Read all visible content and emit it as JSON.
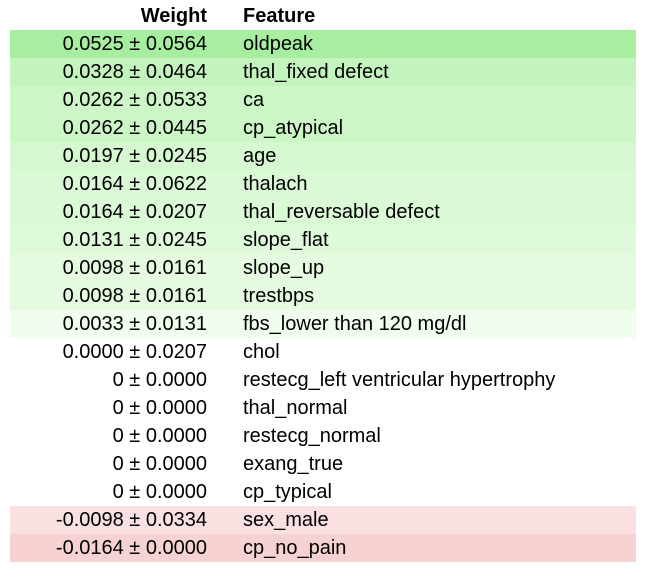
{
  "table": {
    "headers": {
      "weight": "Weight",
      "feature": "Feature"
    },
    "rows": [
      {
        "weight": "0.0525 ± 0.0564",
        "feature": "oldpeak",
        "bg": "#a8eea0"
      },
      {
        "weight": "0.0328 ± 0.0464",
        "feature": "thal_fixed defect",
        "bg": "#c4f4bd"
      },
      {
        "weight": "0.0262 ± 0.0533",
        "feature": "ca",
        "bg": "#ccf6c6"
      },
      {
        "weight": "0.0262 ± 0.0445",
        "feature": "cp_atypical",
        "bg": "#ccf6c6"
      },
      {
        "weight": "0.0197 ± 0.0245",
        "feature": "age",
        "bg": "#d5f8d0"
      },
      {
        "weight": "0.0164 ± 0.0622",
        "feature": "thalach",
        "bg": "#daf9d5"
      },
      {
        "weight": "0.0164 ± 0.0207",
        "feature": "thal_reversable defect",
        "bg": "#daf9d5"
      },
      {
        "weight": "0.0131 ± 0.0245",
        "feature": "slope_flat",
        "bg": "#dffadb"
      },
      {
        "weight": "0.0098 ± 0.0161",
        "feature": "slope_up",
        "bg": "#e4fbe0"
      },
      {
        "weight": "0.0098 ± 0.0161",
        "feature": "trestbps",
        "bg": "#e4fbe0"
      },
      {
        "weight": "0.0033 ± 0.0131",
        "feature": "fbs_lower than 120 mg/dl",
        "bg": "#f1fdef"
      },
      {
        "weight": "0.0000 ± 0.0207",
        "feature": "chol",
        "bg": "#ffffff"
      },
      {
        "weight": "0 ± 0.0000",
        "feature": "restecg_left ventricular hypertrophy",
        "bg": "#ffffff"
      },
      {
        "weight": "0 ± 0.0000",
        "feature": "thal_normal",
        "bg": "#ffffff"
      },
      {
        "weight": "0 ± 0.0000",
        "feature": "restecg_normal",
        "bg": "#ffffff"
      },
      {
        "weight": "0 ± 0.0000",
        "feature": "exang_true",
        "bg": "#ffffff"
      },
      {
        "weight": "0 ± 0.0000",
        "feature": "cp_typical",
        "bg": "#ffffff"
      },
      {
        "weight": "-0.0098 ± 0.0334",
        "feature": "sex_male",
        "bg": "#fae0e0"
      },
      {
        "weight": "-0.0164 ± 0.0000",
        "feature": "cp_no_pain",
        "bg": "#f6d2d2"
      }
    ]
  }
}
